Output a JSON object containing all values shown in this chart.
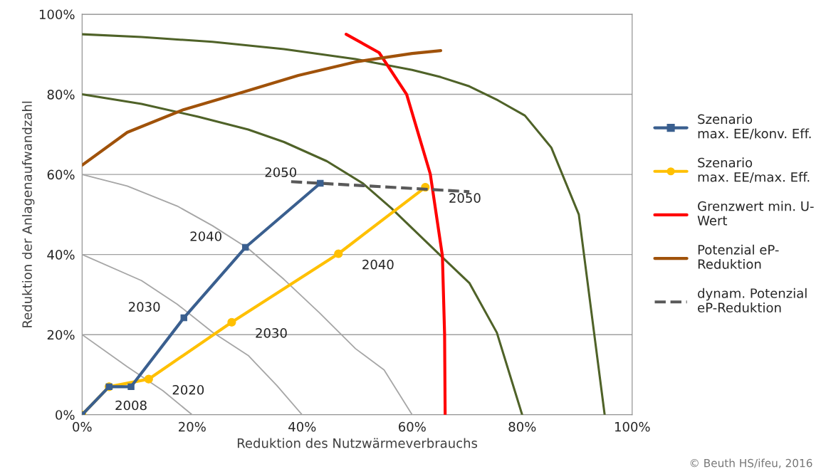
{
  "chart_data": {
    "type": "line",
    "xlabel": "Reduktion des Nutzwärmeverbrauchs",
    "ylabel": "Reduktion der Anlagenaufwandzahl",
    "xlim": [
      0,
      100
    ],
    "ylim": [
      0,
      100
    ],
    "xticks": [
      {
        "value": 0,
        "label": "0%"
      },
      {
        "value": 20,
        "label": "20%"
      },
      {
        "value": 40,
        "label": "40%"
      },
      {
        "value": 60,
        "label": "60%"
      },
      {
        "value": 80,
        "label": "80%"
      },
      {
        "value": 100,
        "label": "100%"
      }
    ],
    "yticks": [
      {
        "value": 0,
        "label": "0%"
      },
      {
        "value": 20,
        "label": "20%"
      },
      {
        "value": 40,
        "label": "40%"
      },
      {
        "value": 60,
        "label": "60%"
      },
      {
        "value": 80,
        "label": "80%"
      },
      {
        "value": 100,
        "label": "100%"
      }
    ],
    "grid": "y",
    "legend": "right",
    "series": [
      {
        "color": "#a6a6a6",
        "marker": "none",
        "line_style": "solid",
        "x": [
          0,
          8.2,
          14.7,
          20
        ],
        "values": [
          20,
          12,
          6,
          0
        ]
      },
      {
        "color": "#a6a6a6",
        "marker": "none",
        "line_style": "solid",
        "x": [
          0,
          10.8,
          17.3,
          23.7,
          30.2,
          35.4,
          40
        ],
        "values": [
          40,
          33.5,
          27.6,
          20.6,
          14.8,
          7.3,
          0
        ]
      },
      {
        "color": "#a6a6a6",
        "marker": "none",
        "line_style": "solid",
        "x": [
          0,
          8.2,
          17.3,
          23.7,
          30.2,
          36.7,
          43.2,
          49.7,
          54.9,
          60
        ],
        "values": [
          60,
          57.1,
          52.1,
          47.2,
          41.5,
          33.8,
          25.4,
          16.5,
          11.2,
          0
        ]
      },
      {
        "color": "#4f6228",
        "marker": "none",
        "line_style": "solid",
        "x": [
          0,
          10.8,
          21.1,
          30.2,
          36.7,
          44.5,
          51,
          56.2,
          65.2,
          70.4,
          75.4,
          80
        ],
        "values": [
          80,
          77.6,
          74.4,
          71.2,
          68.1,
          63.3,
          57.8,
          51.6,
          39.7,
          32.9,
          20.5,
          0
        ]
      },
      {
        "color": "#4f6228",
        "marker": "none",
        "line_style": "solid",
        "x": [
          0,
          10.8,
          23.7,
          36.7,
          49.7,
          60,
          65.2,
          70.4,
          75.6,
          80.5,
          85.3,
          90.3,
          95
        ],
        "values": [
          95,
          94.3,
          93.1,
          91.3,
          88.8,
          86.1,
          84.3,
          82,
          78.5,
          74.7,
          66.7,
          50,
          0
        ]
      },
      {
        "name": "Szenario\nmax. EE/konv. Eff.",
        "color": "#3a5f8f",
        "marker": "square",
        "line_style": "solid",
        "x": [
          0,
          4.9,
          8.9,
          18.5,
          29.7,
          43.3
        ],
        "values": [
          0,
          7,
          7,
          24.2,
          41.8,
          57.8
        ]
      },
      {
        "name": "Szenario\nmax. EE/max. Eff.",
        "color": "#ffc000",
        "marker": "circle",
        "line_style": "solid",
        "x": [
          0,
          4.9,
          12.1,
          27.2,
          46.6,
          62.4
        ],
        "values": [
          0,
          7,
          8.9,
          23.1,
          40.2,
          56.8
        ]
      },
      {
        "name": "Grenzwert min. U-\nWert",
        "color": "#ff0000",
        "marker": "none",
        "line_style": "solid",
        "x": [
          48,
          54,
          59,
          63.3,
          65.5,
          65.9,
          66
        ],
        "values": [
          95,
          90.4,
          80,
          60.1,
          39.7,
          20.1,
          0
        ]
      },
      {
        "name": "Potenzial eP-\nReduktion",
        "color": "#a0520a",
        "marker": "none",
        "line_style": "solid",
        "x": [
          0,
          8.2,
          18.5,
          28.9,
          39.3,
          49.7,
          60,
          65.2
        ],
        "values": [
          62.3,
          70.5,
          76.2,
          80.4,
          84.7,
          88.1,
          90.2,
          90.9
        ]
      },
      {
        "name": "dynam. Potenzial\neP-Reduktion",
        "color": "#595959",
        "marker": "none",
        "line_style": "dashed",
        "x": [
          38,
          70.4
        ],
        "values": [
          58.2,
          55.7
        ]
      }
    ],
    "annotations": [
      {
        "text": "2050",
        "x": 43.3,
        "y": 57.8
      },
      {
        "text": "2040",
        "x": 29.7,
        "y": 41.8
      },
      {
        "text": "2030",
        "x": 18.5,
        "y": 24.2
      },
      {
        "text": "2008",
        "x": 8.9,
        "y": 7
      },
      {
        "text": "2020",
        "x": 12.1,
        "y": 8.9
      },
      {
        "text": "2030",
        "x": 27.2,
        "y": 23.1
      },
      {
        "text": "2040",
        "x": 46.6,
        "y": 40.2
      },
      {
        "text": "2050",
        "x": 62.4,
        "y": 56.8
      },
      "© Beuth HS/ifeu, 2016"
    ]
  }
}
